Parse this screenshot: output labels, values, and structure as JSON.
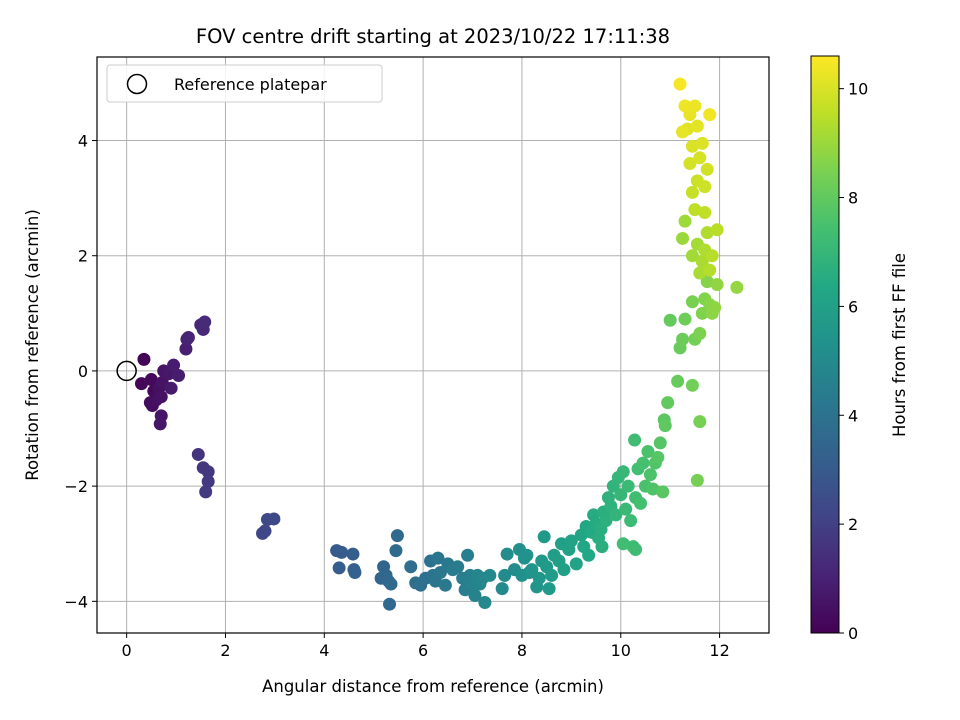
{
  "chart_data": {
    "type": "scatter",
    "title": "FOV centre drift starting at 2023/10/22 17:11:38",
    "xlabel": "Angular distance from reference (arcmin)",
    "ylabel": "Rotation from reference (arcmin)",
    "xlim": [
      -0.6,
      13.0
    ],
    "ylim": [
      -4.55,
      5.45
    ],
    "xticks": [
      0,
      2,
      4,
      6,
      8,
      10,
      12
    ],
    "yticks": [
      -4,
      -2,
      0,
      2,
      4
    ],
    "grid": true,
    "legend": {
      "placement": "top-left",
      "entries": [
        "Reference platepar"
      ]
    },
    "reference_point": {
      "x": 0,
      "y": 0
    },
    "colorbar": {
      "label": "Hours from first FF file",
      "range": [
        0,
        10.6
      ],
      "ticks": [
        0,
        2,
        4,
        6,
        8,
        10
      ],
      "colormap": "viridis"
    },
    "points": [
      {
        "x": 0.35,
        "y": 0.2,
        "h": 0.1
      },
      {
        "x": 0.3,
        "y": -0.22,
        "h": 0.15
      },
      {
        "x": 0.5,
        "y": -0.15,
        "h": 0.2
      },
      {
        "x": 0.55,
        "y": -0.35,
        "h": 0.25
      },
      {
        "x": 0.48,
        "y": -0.55,
        "h": 0.3
      },
      {
        "x": 0.52,
        "y": -0.6,
        "h": 0.35
      },
      {
        "x": 0.6,
        "y": -0.5,
        "h": 0.4
      },
      {
        "x": 0.65,
        "y": -0.3,
        "h": 0.45
      },
      {
        "x": 0.7,
        "y": -0.45,
        "h": 0.5
      },
      {
        "x": 0.72,
        "y": -0.2,
        "h": 0.55
      },
      {
        "x": 0.75,
        "y": 0.0,
        "h": 0.6
      },
      {
        "x": 0.7,
        "y": -0.78,
        "h": 0.62
      },
      {
        "x": 0.68,
        "y": -0.92,
        "h": 0.65
      },
      {
        "x": 0.85,
        "y": -0.05,
        "h": 0.7
      },
      {
        "x": 0.9,
        "y": -0.3,
        "h": 0.75
      },
      {
        "x": 0.95,
        "y": 0.1,
        "h": 0.8
      },
      {
        "x": 1.05,
        "y": -0.08,
        "h": 0.85
      },
      {
        "x": 1.2,
        "y": 0.38,
        "h": 0.95
      },
      {
        "x": 1.22,
        "y": 0.55,
        "h": 1.0
      },
      {
        "x": 1.25,
        "y": 0.58,
        "h": 1.05
      },
      {
        "x": 1.5,
        "y": 0.8,
        "h": 1.15
      },
      {
        "x": 1.55,
        "y": 0.72,
        "h": 1.2
      },
      {
        "x": 1.58,
        "y": 0.85,
        "h": 1.25
      },
      {
        "x": 1.45,
        "y": -1.45,
        "h": 1.6
      },
      {
        "x": 1.55,
        "y": -1.68,
        "h": 1.65
      },
      {
        "x": 1.65,
        "y": -1.75,
        "h": 1.7
      },
      {
        "x": 1.65,
        "y": -1.92,
        "h": 1.75
      },
      {
        "x": 1.6,
        "y": -2.1,
        "h": 1.8
      },
      {
        "x": 2.75,
        "y": -2.82,
        "h": 2.2
      },
      {
        "x": 2.8,
        "y": -2.78,
        "h": 2.25
      },
      {
        "x": 2.85,
        "y": -2.58,
        "h": 2.3
      },
      {
        "x": 2.98,
        "y": -2.57,
        "h": 2.35
      },
      {
        "x": 4.25,
        "y": -3.12,
        "h": 3.0
      },
      {
        "x": 4.35,
        "y": -3.15,
        "h": 3.05
      },
      {
        "x": 4.3,
        "y": -3.42,
        "h": 3.1
      },
      {
        "x": 4.58,
        "y": -3.18,
        "h": 3.15
      },
      {
        "x": 4.6,
        "y": -3.45,
        "h": 3.2
      },
      {
        "x": 4.62,
        "y": -3.5,
        "h": 3.25
      },
      {
        "x": 5.15,
        "y": -3.6,
        "h": 3.4
      },
      {
        "x": 5.2,
        "y": -3.4,
        "h": 3.45
      },
      {
        "x": 5.25,
        "y": -3.55,
        "h": 3.5
      },
      {
        "x": 5.3,
        "y": -3.65,
        "h": 3.55
      },
      {
        "x": 5.35,
        "y": -3.7,
        "h": 3.6
      },
      {
        "x": 5.32,
        "y": -4.05,
        "h": 3.62
      },
      {
        "x": 5.45,
        "y": -3.12,
        "h": 3.65
      },
      {
        "x": 5.48,
        "y": -2.86,
        "h": 3.7
      },
      {
        "x": 5.75,
        "y": -3.4,
        "h": 3.8
      },
      {
        "x": 5.85,
        "y": -3.68,
        "h": 3.85
      },
      {
        "x": 5.95,
        "y": -3.72,
        "h": 3.9
      },
      {
        "x": 6.05,
        "y": -3.6,
        "h": 3.95
      },
      {
        "x": 6.15,
        "y": -3.3,
        "h": 4.0
      },
      {
        "x": 6.2,
        "y": -3.55,
        "h": 4.05
      },
      {
        "x": 6.25,
        "y": -3.65,
        "h": 4.1
      },
      {
        "x": 6.3,
        "y": -3.25,
        "h": 4.15
      },
      {
        "x": 6.35,
        "y": -3.5,
        "h": 4.2
      },
      {
        "x": 6.45,
        "y": -3.72,
        "h": 4.25
      },
      {
        "x": 6.5,
        "y": -3.35,
        "h": 4.3
      },
      {
        "x": 6.6,
        "y": -3.45,
        "h": 4.35
      },
      {
        "x": 6.7,
        "y": -3.4,
        "h": 4.4
      },
      {
        "x": 6.8,
        "y": -3.6,
        "h": 4.45
      },
      {
        "x": 6.85,
        "y": -3.8,
        "h": 4.5
      },
      {
        "x": 6.9,
        "y": -3.2,
        "h": 4.55
      },
      {
        "x": 6.95,
        "y": -3.55,
        "h": 4.6
      },
      {
        "x": 7.0,
        "y": -3.7,
        "h": 4.65
      },
      {
        "x": 7.05,
        "y": -3.9,
        "h": 4.7
      },
      {
        "x": 7.1,
        "y": -3.55,
        "h": 4.75
      },
      {
        "x": 7.15,
        "y": -3.7,
        "h": 4.8
      },
      {
        "x": 7.2,
        "y": -3.6,
        "h": 4.85
      },
      {
        "x": 7.25,
        "y": -4.02,
        "h": 4.9
      },
      {
        "x": 7.35,
        "y": -3.55,
        "h": 4.95
      },
      {
        "x": 7.6,
        "y": -3.78,
        "h": 5.0
      },
      {
        "x": 7.65,
        "y": -3.55,
        "h": 5.05
      },
      {
        "x": 7.7,
        "y": -3.18,
        "h": 5.1
      },
      {
        "x": 7.85,
        "y": -3.45,
        "h": 5.15
      },
      {
        "x": 7.95,
        "y": -3.1,
        "h": 5.2
      },
      {
        "x": 8.0,
        "y": -3.55,
        "h": 5.25
      },
      {
        "x": 8.05,
        "y": -3.25,
        "h": 5.3
      },
      {
        "x": 8.1,
        "y": -3.2,
        "h": 5.35
      },
      {
        "x": 8.15,
        "y": -3.5,
        "h": 5.4
      },
      {
        "x": 8.2,
        "y": -3.45,
        "h": 5.45
      },
      {
        "x": 8.3,
        "y": -3.75,
        "h": 5.5
      },
      {
        "x": 8.35,
        "y": -3.6,
        "h": 5.55
      },
      {
        "x": 8.4,
        "y": -3.3,
        "h": 5.6
      },
      {
        "x": 8.45,
        "y": -2.88,
        "h": 5.65
      },
      {
        "x": 8.5,
        "y": -3.4,
        "h": 5.7
      },
      {
        "x": 8.55,
        "y": -3.78,
        "h": 5.75
      },
      {
        "x": 8.6,
        "y": -3.55,
        "h": 5.8
      },
      {
        "x": 8.65,
        "y": -3.2,
        "h": 5.85
      },
      {
        "x": 8.75,
        "y": -3.3,
        "h": 5.9
      },
      {
        "x": 8.8,
        "y": -3.0,
        "h": 5.95
      },
      {
        "x": 8.85,
        "y": -3.45,
        "h": 6.0
      },
      {
        "x": 8.95,
        "y": -3.1,
        "h": 6.05
      },
      {
        "x": 9.0,
        "y": -2.95,
        "h": 6.1
      },
      {
        "x": 9.1,
        "y": -3.35,
        "h": 6.15
      },
      {
        "x": 9.2,
        "y": -2.85,
        "h": 6.2
      },
      {
        "x": 9.25,
        "y": -3.05,
        "h": 6.25
      },
      {
        "x": 9.3,
        "y": -2.7,
        "h": 6.3
      },
      {
        "x": 9.35,
        "y": -3.2,
        "h": 6.35
      },
      {
        "x": 9.4,
        "y": -2.8,
        "h": 6.4
      },
      {
        "x": 9.45,
        "y": -2.5,
        "h": 6.45
      },
      {
        "x": 9.5,
        "y": -2.65,
        "h": 6.5
      },
      {
        "x": 9.55,
        "y": -2.9,
        "h": 6.55
      },
      {
        "x": 9.6,
        "y": -2.75,
        "h": 6.6
      },
      {
        "x": 9.62,
        "y": -3.05,
        "h": 6.62
      },
      {
        "x": 9.65,
        "y": -2.45,
        "h": 6.65
      },
      {
        "x": 9.7,
        "y": -2.6,
        "h": 6.7
      },
      {
        "x": 9.75,
        "y": -2.2,
        "h": 6.75
      },
      {
        "x": 9.8,
        "y": -2.35,
        "h": 6.8
      },
      {
        "x": 9.85,
        "y": -2.0,
        "h": 6.85
      },
      {
        "x": 9.9,
        "y": -2.5,
        "h": 6.9
      },
      {
        "x": 9.95,
        "y": -1.85,
        "h": 6.95
      },
      {
        "x": 10.0,
        "y": -2.15,
        "h": 7.0
      },
      {
        "x": 10.05,
        "y": -1.75,
        "h": 7.05
      },
      {
        "x": 10.1,
        "y": -2.4,
        "h": 7.1
      },
      {
        "x": 10.15,
        "y": -2.0,
        "h": 7.15
      },
      {
        "x": 10.2,
        "y": -2.6,
        "h": 7.2
      },
      {
        "x": 10.25,
        "y": -3.05,
        "h": 7.22
      },
      {
        "x": 10.3,
        "y": -3.1,
        "h": 7.25
      },
      {
        "x": 10.05,
        "y": -3.0,
        "h": 7.28
      },
      {
        "x": 10.28,
        "y": -1.2,
        "h": 7.3
      },
      {
        "x": 10.3,
        "y": -2.2,
        "h": 7.32
      },
      {
        "x": 10.35,
        "y": -1.7,
        "h": 7.35
      },
      {
        "x": 10.4,
        "y": -2.3,
        "h": 7.4
      },
      {
        "x": 10.45,
        "y": -1.6,
        "h": 7.45
      },
      {
        "x": 10.5,
        "y": -2.0,
        "h": 7.5
      },
      {
        "x": 10.55,
        "y": -1.4,
        "h": 7.55
      },
      {
        "x": 10.6,
        "y": -1.8,
        "h": 7.6
      },
      {
        "x": 10.65,
        "y": -2.05,
        "h": 7.65
      },
      {
        "x": 10.7,
        "y": -1.6,
        "h": 7.7
      },
      {
        "x": 10.75,
        "y": -1.5,
        "h": 7.75
      },
      {
        "x": 10.8,
        "y": -1.25,
        "h": 7.8
      },
      {
        "x": 10.85,
        "y": -2.1,
        "h": 7.85
      },
      {
        "x": 10.88,
        "y": -0.85,
        "h": 7.9
      },
      {
        "x": 10.9,
        "y": -0.95,
        "h": 7.95
      },
      {
        "x": 10.95,
        "y": -0.55,
        "h": 8.0
      },
      {
        "x": 11.0,
        "y": 0.88,
        "h": 8.05
      },
      {
        "x": 11.15,
        "y": -0.18,
        "h": 8.1
      },
      {
        "x": 11.2,
        "y": 0.4,
        "h": 8.15
      },
      {
        "x": 11.25,
        "y": 0.55,
        "h": 8.2
      },
      {
        "x": 11.3,
        "y": 0.9,
        "h": 8.25
      },
      {
        "x": 11.45,
        "y": -0.25,
        "h": 8.3
      },
      {
        "x": 11.5,
        "y": 0.55,
        "h": 8.35
      },
      {
        "x": 11.55,
        "y": -1.9,
        "h": 8.38
      },
      {
        "x": 11.6,
        "y": -0.88,
        "h": 8.4
      },
      {
        "x": 11.45,
        "y": 1.2,
        "h": 8.45
      },
      {
        "x": 11.6,
        "y": 0.65,
        "h": 8.5
      },
      {
        "x": 11.65,
        "y": 1.0,
        "h": 8.55
      },
      {
        "x": 11.7,
        "y": 1.25,
        "h": 8.6
      },
      {
        "x": 11.75,
        "y": 1.55,
        "h": 8.65
      },
      {
        "x": 11.8,
        "y": 1.15,
        "h": 8.7
      },
      {
        "x": 11.85,
        "y": 1.0,
        "h": 8.75
      },
      {
        "x": 11.9,
        "y": 1.1,
        "h": 8.8
      },
      {
        "x": 11.95,
        "y": 1.5,
        "h": 8.85
      },
      {
        "x": 12.35,
        "y": 1.45,
        "h": 8.9
      },
      {
        "x": 11.25,
        "y": 2.3,
        "h": 9.0
      },
      {
        "x": 11.3,
        "y": 2.6,
        "h": 9.05
      },
      {
        "x": 11.45,
        "y": 2.0,
        "h": 9.1
      },
      {
        "x": 11.55,
        "y": 2.2,
        "h": 9.15
      },
      {
        "x": 11.6,
        "y": 1.7,
        "h": 9.2
      },
      {
        "x": 11.65,
        "y": 1.9,
        "h": 9.25
      },
      {
        "x": 11.7,
        "y": 2.1,
        "h": 9.3
      },
      {
        "x": 11.75,
        "y": 2.4,
        "h": 9.35
      },
      {
        "x": 11.8,
        "y": 1.75,
        "h": 9.4
      },
      {
        "x": 11.85,
        "y": 2.0,
        "h": 9.45
      },
      {
        "x": 11.95,
        "y": 2.45,
        "h": 9.5
      },
      {
        "x": 11.5,
        "y": 2.8,
        "h": 9.55
      },
      {
        "x": 11.7,
        "y": 2.75,
        "h": 9.6
      },
      {
        "x": 11.45,
        "y": 3.1,
        "h": 9.7
      },
      {
        "x": 11.55,
        "y": 3.3,
        "h": 9.75
      },
      {
        "x": 11.7,
        "y": 3.2,
        "h": 9.8
      },
      {
        "x": 11.75,
        "y": 3.5,
        "h": 9.85
      },
      {
        "x": 11.4,
        "y": 3.6,
        "h": 9.9
      },
      {
        "x": 11.6,
        "y": 3.7,
        "h": 9.95
      },
      {
        "x": 11.45,
        "y": 3.9,
        "h": 10.0
      },
      {
        "x": 11.65,
        "y": 3.95,
        "h": 10.05
      },
      {
        "x": 11.35,
        "y": 4.2,
        "h": 10.1
      },
      {
        "x": 11.55,
        "y": 4.25,
        "h": 10.15
      },
      {
        "x": 11.25,
        "y": 4.15,
        "h": 10.2
      },
      {
        "x": 11.4,
        "y": 4.45,
        "h": 10.25
      },
      {
        "x": 11.5,
        "y": 4.6,
        "h": 10.3
      },
      {
        "x": 11.3,
        "y": 4.6,
        "h": 10.35
      },
      {
        "x": 11.8,
        "y": 4.45,
        "h": 10.4
      },
      {
        "x": 11.2,
        "y": 4.98,
        "h": 10.5
      }
    ]
  }
}
